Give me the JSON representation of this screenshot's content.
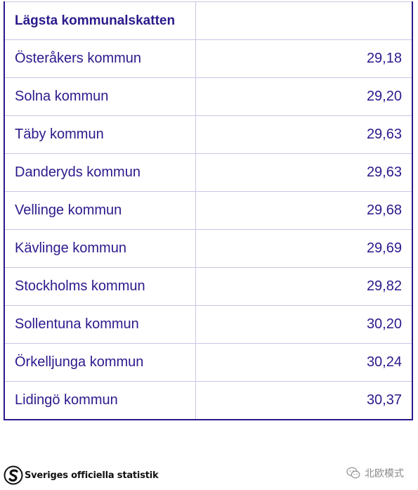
{
  "table": {
    "header": "Lägsta kommunalskatten",
    "header_value": "",
    "rows": [
      {
        "name": "Österåkers kommun",
        "value": "29,18"
      },
      {
        "name": "Solna kommun",
        "value": "29,20"
      },
      {
        "name": "Täby kommun",
        "value": "29,63"
      },
      {
        "name": "Danderyds kommun",
        "value": "29,63"
      },
      {
        "name": "Vellinge kommun",
        "value": "29,68"
      },
      {
        "name": "Kävlinge kommun",
        "value": "29,69"
      },
      {
        "name": "Stockholms kommun",
        "value": "29,82"
      },
      {
        "name": "Sollentuna kommun",
        "value": "30,20"
      },
      {
        "name": "Örkelljunga kommun",
        "value": "30,24"
      },
      {
        "name": "Lidingö kommun",
        "value": "30,37"
      }
    ]
  },
  "footer": {
    "source_logo_text": "Sveriges officiella statistik",
    "watermark_text": "北欧模式"
  },
  "colors": {
    "text": "#2a1a8c",
    "border": "#c9c6e6",
    "frame": "#2a1a8c"
  },
  "icons": {
    "source_logo": "scb-logo-icon",
    "watermark": "wechat-icon"
  }
}
